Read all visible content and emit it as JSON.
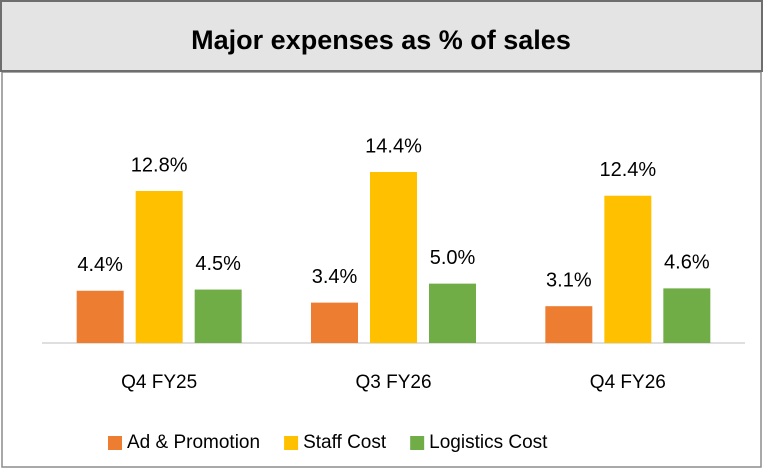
{
  "chart_data": {
    "type": "bar",
    "title": "Major expenses as % of sales",
    "categories": [
      "Q4 FY25",
      "Q3 FY26",
      "Q4 FY26"
    ],
    "series": [
      {
        "name": "Ad & Promotion",
        "color": "#ED7D31",
        "values": [
          4.4,
          3.4,
          3.1
        ],
        "value_labels": [
          "4.4%",
          "3.4%",
          "3.1%"
        ]
      },
      {
        "name": "Staff Cost",
        "color": "#FFC000",
        "values": [
          12.8,
          14.4,
          12.4
        ],
        "value_labels": [
          "12.8%",
          "14.4%",
          "12.4%"
        ]
      },
      {
        "name": "Logistics Cost",
        "color": "#70AD47",
        "values": [
          4.5,
          5.0,
          4.6
        ],
        "value_labels": [
          "4.5%",
          "5.0%",
          "4.6%"
        ]
      }
    ],
    "legend": "bottom"
  }
}
